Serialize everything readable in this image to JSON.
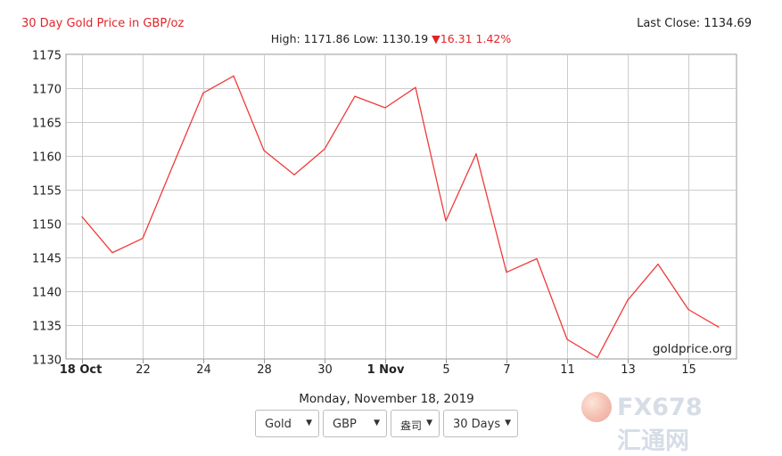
{
  "header": {
    "title": "30 Day Gold Price in GBP/oz",
    "last_close": "Last Close: 1134.69",
    "hilo_prefix": "High: 1171.86 Low: 1130.19",
    "change_arrow": "▼",
    "change": "16.31 1.42%"
  },
  "watermark_source": "goldprice.org",
  "date_label": "Monday, November 18, 2019",
  "controls": {
    "metal": "Gold",
    "currency": "GBP",
    "unit": "盎司",
    "period": "30 Days"
  },
  "site_watermark": {
    "text": "FX678 汇通网"
  },
  "colors": {
    "line": "#f03a3a",
    "title": "#e0242a",
    "grid": "#cccccc"
  },
  "chart_data": {
    "type": "line",
    "title": "30 Day Gold Price in GBP/oz",
    "series": [
      {
        "values": [
          1151.0,
          1145.7,
          1147.8,
          1158.6,
          1169.3,
          1171.8,
          1160.8,
          1157.2,
          1161.0,
          1168.8,
          1167.1,
          1170.1,
          1150.4,
          1160.3,
          1142.8,
          1144.8,
          1132.9,
          1130.2,
          1138.7,
          1144.0,
          1137.3,
          1134.7
        ]
      }
    ],
    "x_ticks": [
      "18 Oct",
      "22",
      "24",
      "28",
      "30",
      "1 Nov",
      "5",
      "7",
      "11",
      "13",
      "15"
    ],
    "x_tick_bold": [
      "18 Oct",
      "1 Nov"
    ],
    "y_ticks": [
      1130,
      1135,
      1140,
      1145,
      1150,
      1155,
      1160,
      1165,
      1170,
      1175
    ],
    "ylim": [
      1130,
      1175
    ],
    "grid": true
  }
}
